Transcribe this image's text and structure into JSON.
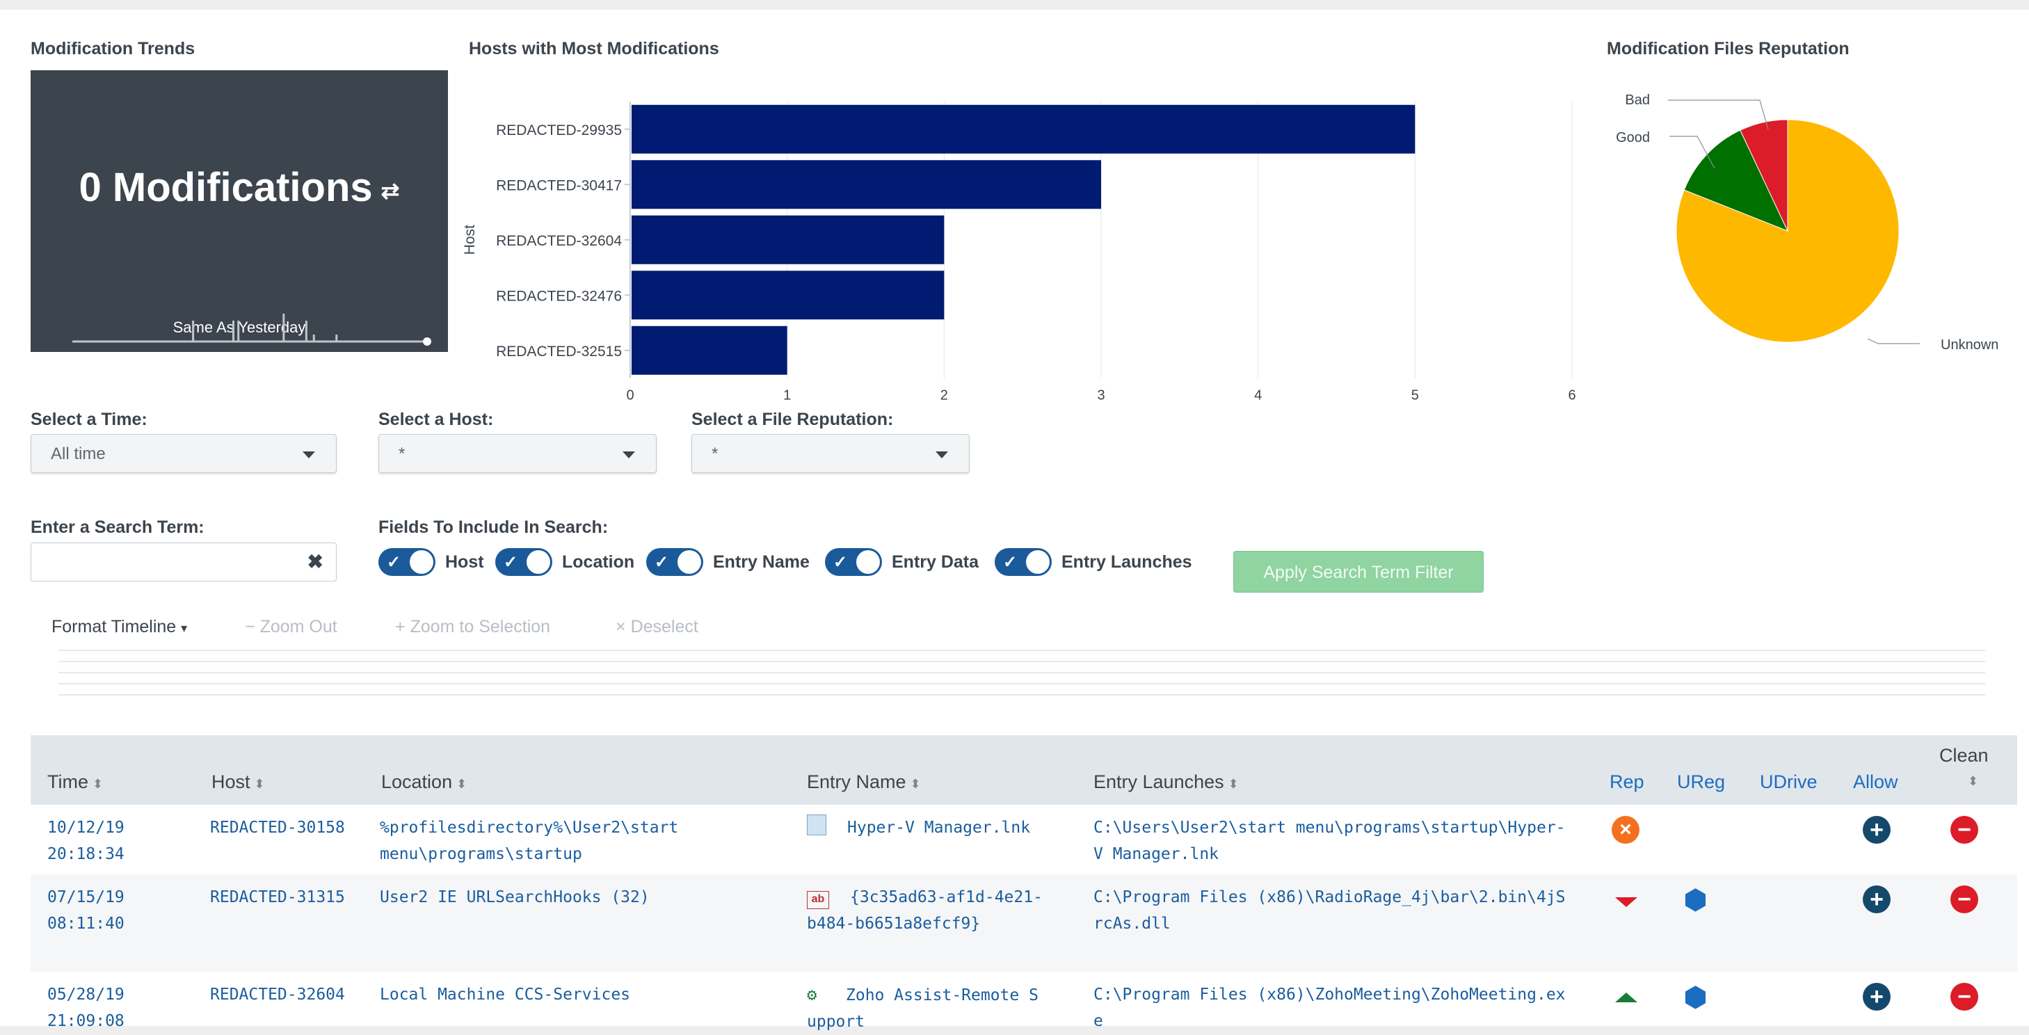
{
  "panels": {
    "trends_title": "Modification Trends",
    "hosts_title": "Hosts with Most Modifications",
    "reputation_title": "Modification Files Reputation"
  },
  "single_value": {
    "value": "0 Modifications",
    "trend_icon": "arrow-transfer-icon",
    "subtitle": "Same As Yesterday",
    "sparkline": [
      0,
      0,
      0,
      0,
      0,
      0,
      0,
      0,
      0,
      0,
      0,
      0,
      0,
      0,
      0,
      0,
      0,
      0,
      0,
      0,
      0,
      0,
      0,
      0,
      0,
      0,
      0,
      0,
      0,
      0,
      0,
      0,
      0,
      0,
      0,
      0,
      0,
      0,
      0,
      0,
      0,
      0,
      0,
      0,
      0,
      0,
      0,
      0,
      3,
      0,
      0,
      0,
      0,
      0,
      0,
      0,
      0,
      0,
      0,
      0,
      0,
      0,
      0,
      0,
      3,
      0,
      3,
      0,
      0,
      0,
      0,
      0,
      0,
      0,
      0,
      0,
      0,
      0,
      0,
      0,
      0,
      0,
      0,
      0,
      4,
      0,
      0,
      0,
      0,
      0,
      0,
      0,
      0,
      3,
      0,
      0,
      1,
      0,
      0,
      0,
      0,
      0,
      0,
      0,
      0,
      1,
      0,
      0,
      0,
      0,
      0,
      0,
      0,
      0,
      0,
      0,
      0,
      0,
      0,
      0,
      0,
      0,
      0,
      0,
      0,
      0,
      0,
      0,
      0,
      0,
      0,
      0,
      0,
      0,
      0,
      0,
      0,
      0,
      0,
      0,
      0,
      0
    ]
  },
  "chart_data": [
    {
      "type": "bar",
      "orientation": "horizontal",
      "title": "Hosts with Most Modifications",
      "ylabel": "Host",
      "xlabel": "",
      "categories": [
        "REDACTED-29935",
        "REDACTED-30417",
        "REDACTED-32604",
        "REDACTED-32476",
        "REDACTED-32515"
      ],
      "values": [
        5,
        3,
        2,
        2,
        1
      ],
      "xlim": [
        0,
        6
      ],
      "ticks": [
        "0",
        "1",
        "2",
        "3",
        "4",
        "5",
        "6"
      ],
      "grid": true,
      "color": "#001b71"
    },
    {
      "type": "pie",
      "title": "Modification Files Reputation",
      "labels": [
        "Unknown",
        "Good",
        "Bad"
      ],
      "values": [
        81,
        12,
        7
      ],
      "colors": [
        "#ffb800",
        "#007000",
        "#dc1c28"
      ]
    }
  ],
  "filters": {
    "time": {
      "label": "Select a Time:",
      "value": "All time"
    },
    "host": {
      "label": "Select a Host:",
      "value": "*"
    },
    "reputation": {
      "label": "Select a File Reputation:",
      "value": "*"
    },
    "search": {
      "label": "Enter a Search Term:",
      "value": "",
      "clear_icon": "clear-x-icon"
    },
    "fields_label": "Fields To Include In Search:",
    "toggles": [
      "Host",
      "Location",
      "Entry Name",
      "Entry Data",
      "Entry Launches"
    ],
    "apply_label": "Apply Search Term Filter"
  },
  "timeline": {
    "format": "Format Timeline",
    "zoom_out": "Zoom Out",
    "zoom_selection": "Zoom to Selection",
    "deselect": "Deselect"
  },
  "table": {
    "headers": {
      "time": "Time",
      "host": "Host",
      "location": "Location",
      "entry_name": "Entry Name",
      "entry_launches": "Entry Launches",
      "rep": "Rep",
      "ureg": "UReg",
      "udrive": "UDrive",
      "allow": "Allow",
      "clean": "Clean"
    },
    "rows": [
      {
        "time1": "10/12/19",
        "time2": "20:18:34",
        "host": "REDACTED-30158",
        "loc1": "%profilesdirectory%\\User2\\start",
        "loc2": "menu\\programs\\startup",
        "name1": "Hyper-V Manager.lnk",
        "name2": "",
        "icon": "shortcut-file-icon",
        "launch1": "C:\\Users\\User2\\start menu\\programs\\startup\\Hyper-",
        "launch2": "V Manager.lnk",
        "rep": "bad-x-icon"
      },
      {
        "time1": "07/15/19",
        "time2": "08:11:40",
        "host": "REDACTED-31315",
        "loc1": "User2 IE URLSearchHooks (32)",
        "loc2": "",
        "name1": "{3c35ad63-af1d-4e21-",
        "name2": "b484-b6651a8efcf9}",
        "icon": "registry-string-icon",
        "launch1": "C:\\Program Files (x86)\\RadioRage_4j\\bar\\2.bin\\4jS",
        "launch2": "rcAs.dll",
        "rep": "reputation-down-icon"
      },
      {
        "time1": "05/28/19",
        "time2": "21:09:08",
        "host": "REDACTED-32604",
        "loc1": "Local Machine CCS-Services",
        "loc2": "",
        "name1": "Zoho Assist-Remote S",
        "name2": "upport",
        "icon": "service-gear-icon",
        "launch1": "C:\\Program Files (x86)\\ZohoMeeting\\ZohoMeeting.ex",
        "launch2": "e",
        "rep": "reputation-up-icon"
      }
    ]
  }
}
